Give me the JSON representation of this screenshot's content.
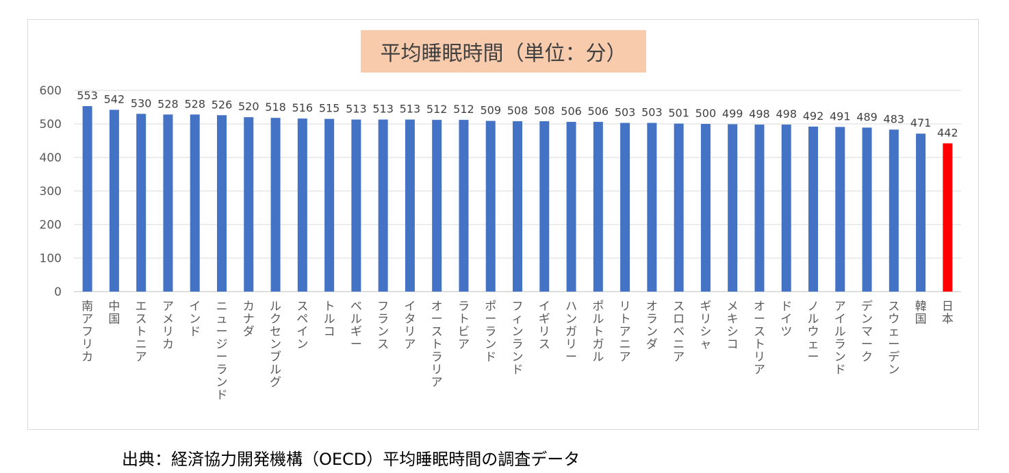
{
  "chart_data": {
    "type": "bar",
    "title": "平均睡眠時間（単位：分）",
    "xlabel": "",
    "ylabel": "",
    "ylim": [
      0,
      600
    ],
    "yticks": [
      "0",
      "100",
      "200",
      "300",
      "400",
      "500",
      "600"
    ],
    "grid": true,
    "categories": [
      "南アフリカ",
      "中国",
      "エストニア",
      "アメリカ",
      "インド",
      "ニュージーランド",
      "カナダ",
      "ルクセンブルグ",
      "スペイン",
      "トルコ",
      "ベルギー",
      "フランス",
      "イタリア",
      "オーストラリア",
      "ラトビア",
      "ポーランド",
      "フィンランド",
      "イギリス",
      "ハンガリー",
      "ポルトガル",
      "リトアニア",
      "オランダ",
      "スロベニア",
      "ギリシャ",
      "メキシコ",
      "オーストリア",
      "ドイツ",
      "ノルウェー",
      "アイルランド",
      "デンマーク",
      "スウェーデン",
      "韓国",
      "日本"
    ],
    "values": [
      553,
      542,
      530,
      528,
      528,
      526,
      520,
      518,
      516,
      515,
      513,
      513,
      513,
      512,
      512,
      509,
      508,
      508,
      506,
      506,
      503,
      503,
      501,
      500,
      499,
      498,
      498,
      492,
      491,
      489,
      483,
      471,
      442
    ],
    "data_labels": [
      "553",
      "542",
      "530",
      "528",
      "528",
      "526",
      "520",
      "518",
      "516",
      "515",
      "513",
      "513",
      "513",
      "512",
      "512",
      "509",
      "508",
      "508",
      "506",
      "506",
      "503",
      "503",
      "501",
      "500",
      "499",
      "498",
      "498",
      "492",
      "491",
      "489",
      "483",
      "471",
      "442"
    ],
    "bar_color": "#4472c4",
    "highlight_color": "#ff0000",
    "highlight_category": "日本"
  },
  "source_note": "出典：経済協力開発機構（OECD）平均睡眠時間の調査データ"
}
